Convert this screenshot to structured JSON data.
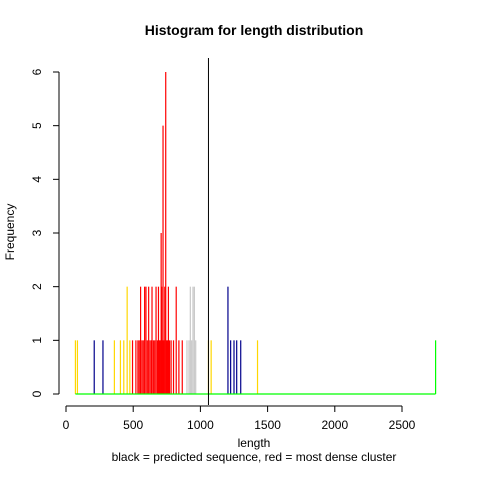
{
  "chart_data": {
    "type": "histogram",
    "title": "Histogram for length distribution",
    "xlabel": "length",
    "sublabel": "black = predicted sequence, red = most dense cluster",
    "ylabel": "Frequency",
    "xlim": [
      0,
      2750
    ],
    "ylim": [
      0,
      6
    ],
    "x_ticks": [
      0,
      500,
      1000,
      1500,
      2000,
      2500
    ],
    "y_ticks": [
      0,
      1,
      2,
      3,
      4,
      5,
      6
    ],
    "grid": false,
    "baseline_color": "#00ff00",
    "predicted_sequence_length": 1060,
    "predicted_sequence_color": "#000000",
    "series": [
      {
        "color": "#ffd700",
        "bars": [
          {
            "x": 70,
            "y": 1
          },
          {
            "x": 85,
            "y": 1
          },
          {
            "x": 360,
            "y": 1
          },
          {
            "x": 405,
            "y": 1
          },
          {
            "x": 430,
            "y": 1
          },
          {
            "x": 455,
            "y": 2
          },
          {
            "x": 475,
            "y": 1
          },
          {
            "x": 1060,
            "y": 1
          },
          {
            "x": 1080,
            "y": 1
          },
          {
            "x": 1425,
            "y": 1
          }
        ]
      },
      {
        "color": "#00008b",
        "bars": [
          {
            "x": 210,
            "y": 1
          },
          {
            "x": 275,
            "y": 1
          },
          {
            "x": 1205,
            "y": 2
          },
          {
            "x": 1225,
            "y": 1
          },
          {
            "x": 1250,
            "y": 1
          },
          {
            "x": 1270,
            "y": 1
          },
          {
            "x": 1300,
            "y": 1
          }
        ]
      },
      {
        "color": "#c8c8c8",
        "bars": [
          {
            "x": 900,
            "y": 1
          },
          {
            "x": 915,
            "y": 1
          },
          {
            "x": 925,
            "y": 2
          },
          {
            "x": 935,
            "y": 1
          },
          {
            "x": 945,
            "y": 2
          },
          {
            "x": 955,
            "y": 2
          },
          {
            "x": 965,
            "y": 1
          }
        ]
      },
      {
        "color": "#ff0000",
        "bars": [
          {
            "x": 495,
            "y": 1
          },
          {
            "x": 520,
            "y": 1
          },
          {
            "x": 535,
            "y": 1
          },
          {
            "x": 545,
            "y": 1
          },
          {
            "x": 555,
            "y": 2
          },
          {
            "x": 565,
            "y": 1
          },
          {
            "x": 575,
            "y": 1
          },
          {
            "x": 585,
            "y": 2
          },
          {
            "x": 595,
            "y": 2
          },
          {
            "x": 605,
            "y": 1
          },
          {
            "x": 615,
            "y": 2
          },
          {
            "x": 625,
            "y": 1
          },
          {
            "x": 635,
            "y": 1
          },
          {
            "x": 640,
            "y": 2
          },
          {
            "x": 650,
            "y": 1
          },
          {
            "x": 660,
            "y": 1
          },
          {
            "x": 670,
            "y": 2
          },
          {
            "x": 680,
            "y": 1
          },
          {
            "x": 688,
            "y": 2
          },
          {
            "x": 695,
            "y": 1
          },
          {
            "x": 702,
            "y": 1
          },
          {
            "x": 708,
            "y": 3
          },
          {
            "x": 712,
            "y": 2
          },
          {
            "x": 718,
            "y": 1
          },
          {
            "x": 722,
            "y": 5
          },
          {
            "x": 728,
            "y": 1
          },
          {
            "x": 735,
            "y": 2
          },
          {
            "x": 742,
            "y": 6
          },
          {
            "x": 748,
            "y": 1
          },
          {
            "x": 755,
            "y": 1
          },
          {
            "x": 762,
            "y": 2
          },
          {
            "x": 770,
            "y": 1
          },
          {
            "x": 782,
            "y": 1
          },
          {
            "x": 800,
            "y": 1
          },
          {
            "x": 820,
            "y": 2
          },
          {
            "x": 840,
            "y": 1
          },
          {
            "x": 865,
            "y": 1
          }
        ]
      }
    ]
  }
}
